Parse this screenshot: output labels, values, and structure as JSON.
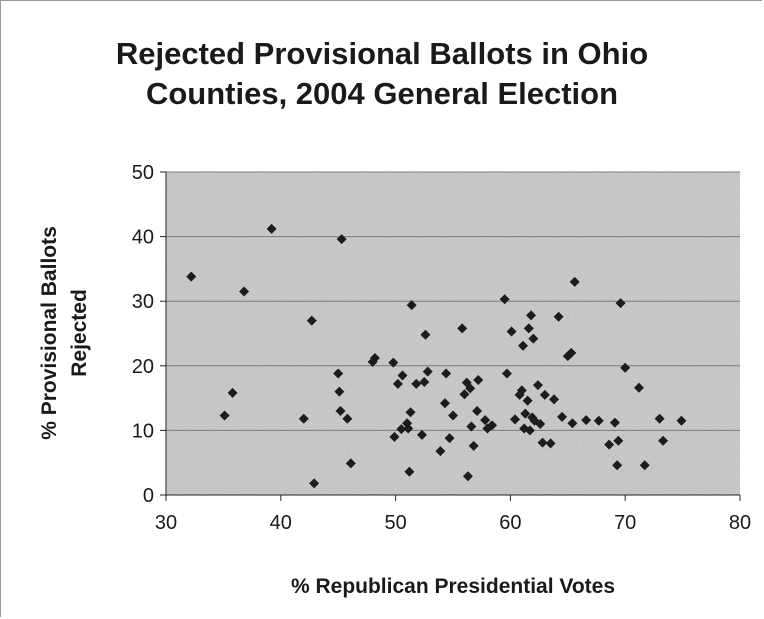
{
  "chart_data": {
    "type": "scatter",
    "title_lines": [
      "Rejected Provisional Ballots in Ohio",
      "Counties, 2004 General Election"
    ],
    "xlabel": "% Republican Presidential Votes",
    "ylabel_lines": [
      "% Provisional Ballots",
      "Rejected"
    ],
    "xlim": [
      30,
      80
    ],
    "ylim": [
      0,
      50
    ],
    "x_ticks": [
      "30",
      "40",
      "50",
      "60",
      "70",
      "80"
    ],
    "y_ticks": [
      "0",
      "10",
      "20",
      "30",
      "40",
      "50"
    ],
    "grid": "horizontal",
    "legend": "none",
    "colors": {
      "marker": "#1c1c1c",
      "plot_background": "#c9c9c9",
      "gridline": "#7a7a7a"
    },
    "points": [
      [
        32.2,
        33.8
      ],
      [
        35.1,
        12.3
      ],
      [
        35.8,
        15.8
      ],
      [
        36.8,
        31.5
      ],
      [
        39.2,
        41.2
      ],
      [
        42.0,
        11.8
      ],
      [
        42.7,
        27.0
      ],
      [
        42.9,
        1.8
      ],
      [
        45.0,
        18.8
      ],
      [
        45.1,
        16.0
      ],
      [
        45.2,
        13.0
      ],
      [
        45.3,
        39.6
      ],
      [
        45.8,
        11.8
      ],
      [
        46.1,
        4.9
      ],
      [
        48.0,
        20.6
      ],
      [
        48.2,
        21.2
      ],
      [
        49.8,
        20.5
      ],
      [
        49.9,
        9.0
      ],
      [
        50.2,
        17.2
      ],
      [
        50.5,
        10.2
      ],
      [
        50.6,
        18.5
      ],
      [
        51.0,
        11.1
      ],
      [
        51.1,
        10.3
      ],
      [
        51.3,
        12.8
      ],
      [
        51.2,
        3.6
      ],
      [
        51.4,
        29.4
      ],
      [
        51.8,
        17.2
      ],
      [
        52.3,
        9.3
      ],
      [
        52.5,
        17.5
      ],
      [
        52.6,
        24.8
      ],
      [
        52.8,
        19.1
      ],
      [
        53.9,
        6.8
      ],
      [
        54.3,
        14.2
      ],
      [
        54.4,
        18.8
      ],
      [
        54.7,
        8.8
      ],
      [
        55.0,
        12.3
      ],
      [
        55.8,
        25.8
      ],
      [
        56.0,
        15.6
      ],
      [
        56.2,
        17.4
      ],
      [
        56.3,
        2.9
      ],
      [
        56.5,
        16.5
      ],
      [
        56.6,
        10.6
      ],
      [
        56.8,
        7.6
      ],
      [
        57.1,
        13.0
      ],
      [
        57.2,
        17.8
      ],
      [
        57.8,
        11.6
      ],
      [
        58.0,
        10.3
      ],
      [
        58.4,
        10.8
      ],
      [
        59.5,
        30.3
      ],
      [
        59.7,
        18.8
      ],
      [
        60.1,
        25.3
      ],
      [
        60.4,
        11.7
      ],
      [
        60.8,
        15.5
      ],
      [
        61.0,
        16.2
      ],
      [
        61.1,
        23.1
      ],
      [
        61.2,
        10.3
      ],
      [
        61.3,
        12.6
      ],
      [
        61.5,
        14.6
      ],
      [
        61.6,
        25.8
      ],
      [
        61.7,
        10.0
      ],
      [
        61.8,
        27.8
      ],
      [
        61.9,
        12.0
      ],
      [
        62.0,
        24.2
      ],
      [
        62.1,
        11.5
      ],
      [
        62.4,
        17.0
      ],
      [
        62.6,
        11.0
      ],
      [
        62.8,
        8.1
      ],
      [
        63.0,
        15.5
      ],
      [
        63.5,
        8.0
      ],
      [
        63.8,
        14.8
      ],
      [
        64.2,
        27.6
      ],
      [
        64.5,
        12.1
      ],
      [
        65.0,
        21.5
      ],
      [
        65.3,
        22.0
      ],
      [
        65.4,
        11.1
      ],
      [
        65.6,
        33.0
      ],
      [
        66.6,
        11.6
      ],
      [
        67.7,
        11.5
      ],
      [
        68.6,
        7.8
      ],
      [
        69.1,
        11.2
      ],
      [
        69.3,
        4.6
      ],
      [
        69.4,
        8.4
      ],
      [
        69.6,
        29.7
      ],
      [
        70.0,
        19.7
      ],
      [
        71.2,
        16.6
      ],
      [
        71.7,
        4.6
      ],
      [
        73.0,
        11.8
      ],
      [
        73.3,
        8.4
      ],
      [
        74.9,
        11.5
      ]
    ]
  }
}
